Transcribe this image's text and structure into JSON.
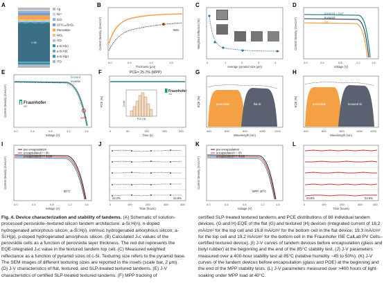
{
  "panels": {
    "A": {
      "letter": "A",
      "layers": [
        {
          "label": "Ag",
          "color": "#b9b9b9"
        },
        {
          "label": "Ni²⁺",
          "color": "#c7d3e0"
        },
        {
          "label": "ICO",
          "color": "#8fb4d8"
        },
        {
          "label": "LiF/C₆₀/SnO₂",
          "color": "#7a9cc4"
        },
        {
          "label": "Perovskite",
          "color": "#f0a35a"
        },
        {
          "label": "NiOₓ",
          "color": "#e6c389"
        },
        {
          "label": "ITO",
          "color": "#a6bed9"
        },
        {
          "label": "a-Si:H(n)",
          "color": "#3f8a9e"
        },
        {
          "label": "a-Si:H(i)",
          "color": "#5ea9b8"
        },
        {
          "label": "a-Si:H(p)",
          "color": "#3f8a9e"
        },
        {
          "label": "ITO",
          "color": "#9eb7d5"
        }
      ],
      "bulk_label": "c-Si"
    },
    "B": {
      "letter": "B",
      "annotation": "95%",
      "xlabel": "Thickness (μm)",
      "ylabel": "Current Density (mA/cm²)"
    },
    "C": {
      "letter": "C",
      "xlabel": "Average pyramid size (μm)",
      "ylabel": "Weighted reflection (%)"
    },
    "D": {
      "letter": "D",
      "legend": [
        "textured + SLP",
        "textured",
        "flat"
      ],
      "xlabel": "Voltage (V)",
      "ylabel": "Current Density (mA/cm²)"
    },
    "E": {
      "letter": "E",
      "legend": [
        "forward",
        "reverse"
      ],
      "logo": "Fraunhofer",
      "logo_sub": "ISE",
      "mpp": "MPP",
      "xlabel": "Voltage (V)",
      "ylabel": "Current Density (mA/cm²)"
    },
    "F": {
      "letter": "F",
      "title": "PCE= 25.7% (MPP)",
      "logo": "Fraunhofer",
      "logo_sub": "ISE",
      "xlabel": "Time (s)",
      "ylabel": "PCE (%)",
      "inset_ylabel": "Count",
      "inset_xlabel": "PCE (%)"
    },
    "G": {
      "letter": "G",
      "regions": [
        "perovskite",
        "flat Si"
      ],
      "xlabel": "Wavelength (nm)",
      "ylabel": "EQE (%)"
    },
    "H": {
      "letter": "H",
      "regions": [
        "perovskite",
        "textured Si"
      ],
      "xlabel": "Wavelength (nm)",
      "ylabel": "EQE (%)"
    },
    "I": {
      "letter": "I",
      "legend": [
        "pre encapsulation",
        "encapsulated t = 0h",
        "encapsulated t = 400h"
      ],
      "temp": "85°C",
      "xlabel": "Voltage (V)",
      "ylabel": "Current Density (mA/cm²)"
    },
    "J": {
      "letter": "J",
      "start": "22.2%",
      "end": "22.8%",
      "xlabel": "Time (hours)"
    },
    "K": {
      "letter": "K",
      "legend": [
        "pre encapsulation",
        "encapsulated t = 0h",
        "encapsulated t = 400h"
      ],
      "note": "MPP, 40°C",
      "xlabel": "Voltage (V)",
      "ylabel": "Current Density (mA/cm²)"
    },
    "L": {
      "letter": "L",
      "start": "23.6%",
      "end": "23.9%",
      "xlabel": "Time (hours)"
    }
  },
  "caption": {
    "title": "Fig. 4. Device characterization and stability of tandems.",
    "left": "(A) Schematic of solution-processed perovskite–textured silicon tandem architecture. a-Si:H(n), n-doped hydrogenated amorphous silicon; a-Si:H(i), intrinsic hydrogenated amorphous silicon; a-Si:H(p), p-doped hydrogenated amorphous silicon. (B) Calculated Jₛc values of the perovskite cells as a function of perovskite layer thickness. The red dot represents the EQE-integrated Jₛc value in the textured tandem top cell. (C) Measured weighted reflectance as a function of pyramid sizes of c-Si. Texturing size refers to the pyramid base. The SEM images of different texturing sizes are reported in the insets (scale bar, 2 μm). (D) J-V characteristics of flat, textured, and SLP-treated textured tandems. (E) J-V characteristics of certified SLP-treated textured tandems. (F) MPP tracking of",
    "right": "certified SLP-treated textured tandems and PCE distributions of 88 individual tandem devices. (G and H) EQE of the flat (G) and textured (H) devices (integrated current of 18.2 mA/cm² for the top cell and 16.8 mA/cm² for the bottom cell in the flat device; 19.3 mA/cm² for the top cell and 19.2 mA/cm² for the bottom cell in the Fraunhofer ISE CalLab PV Cells–certified textured device). (I) J-V curves of tandem devices before encapsulation (glass and butyl rubber) at the beginning and the end of the 85°C stability test. (J) J-V parameters measured over a 400-hour stability test at 85°C (relative humidity ~45 to 50%). (K) J-V curves of the tandem devices before encapsulation (glass and POE) at the beginning and the end of the MPP stability tests. (L) J-V parameters measured over >400 hours of light-soaking under MPP load at 40°C."
  },
  "colors": {
    "orange": "#f39c3d",
    "teal": "#2f7f8c",
    "navy": "#1f3550",
    "gray": "#7a7f87"
  }
}
